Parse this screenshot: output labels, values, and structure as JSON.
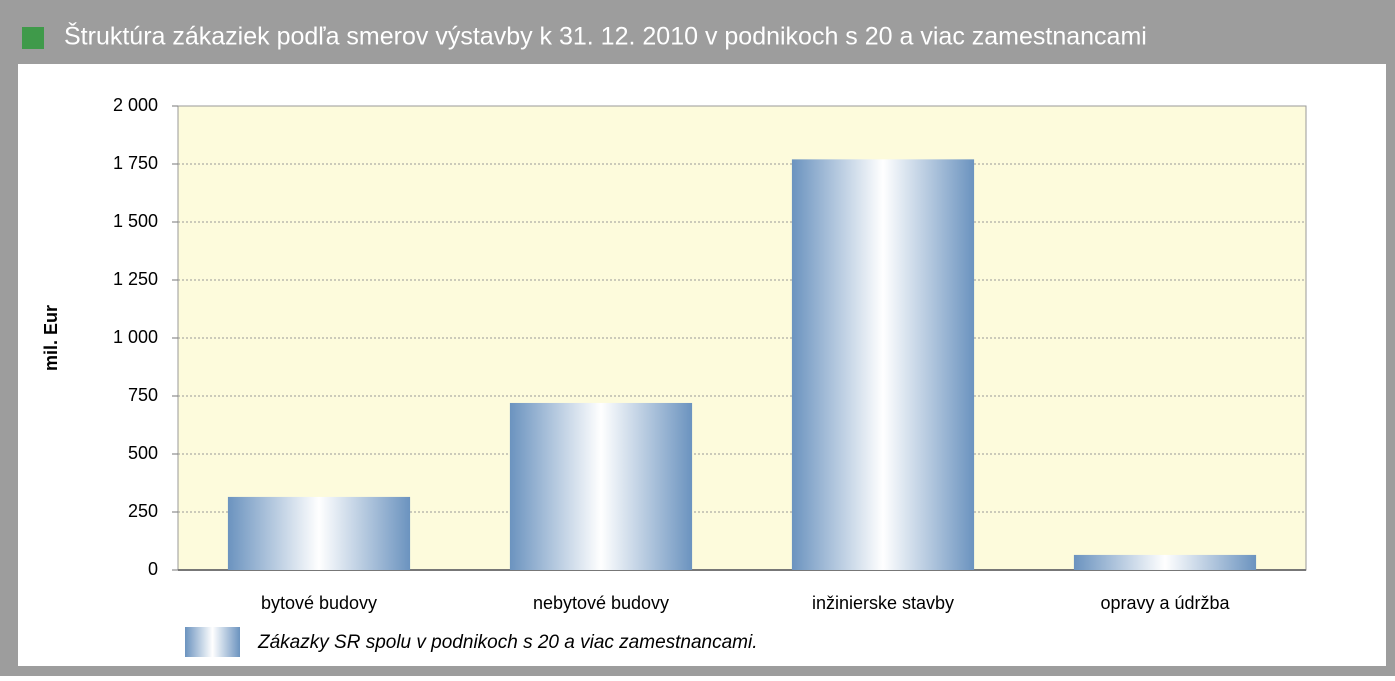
{
  "chart_data": {
    "type": "bar",
    "title": "Štruktúra zákaziek podľa smerov výstavby k 31. 12. 2010 v podnikoch s 20 a viac zamestnancami",
    "y_label": "mil. Eur",
    "categories": [
      "bytové budovy",
      "nebytové budovy",
      "inžinierske stavby",
      "opravy a údržba"
    ],
    "series": [
      {
        "name": "Zákazky SR spolu v podnikoch s 20 a viac zamestnancami.",
        "color": "#6b93bf",
        "values": [
          315,
          720,
          1770,
          65
        ]
      }
    ],
    "ylim": [
      0,
      2000
    ],
    "yticks": [
      0,
      250,
      500,
      750,
      {
        "value": 1000,
        "label": "1 000"
      },
      {
        "value": 1250,
        "label": "1 250"
      },
      {
        "value": 1500,
        "label": "1 500"
      },
      {
        "value": 1750,
        "label": "1 750"
      },
      {
        "value": 2000,
        "label": "2 000"
      }
    ],
    "grid": true
  }
}
